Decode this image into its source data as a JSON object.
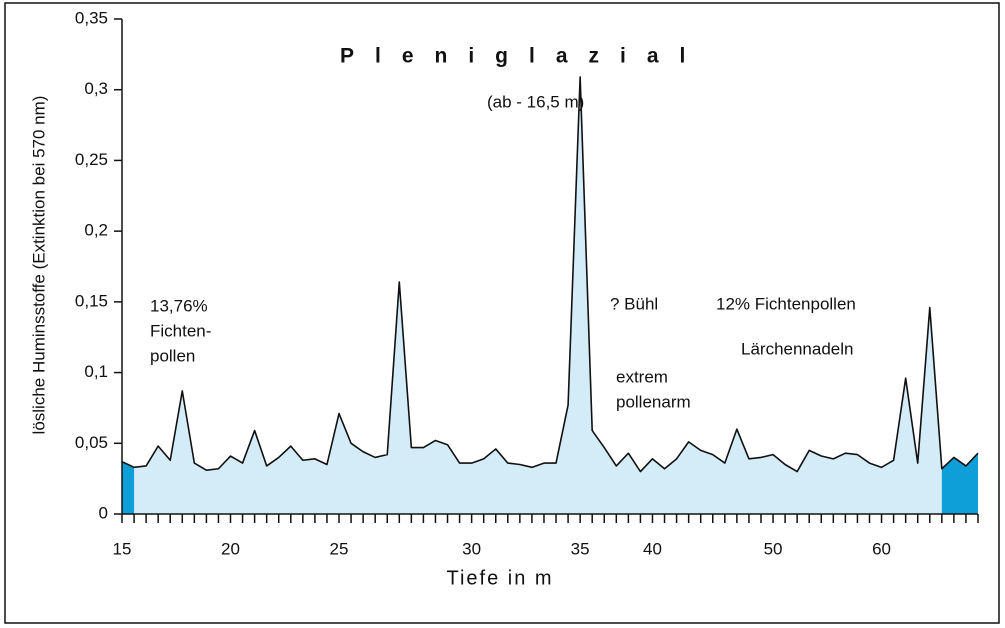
{
  "chart_data": {
    "type": "area",
    "title": "Pleniglazial",
    "x_label": "Tiefe in m",
    "y_label": "lösliche Huminsstoffe (Extinktion bei 570 nm)",
    "annotations": [
      "(ab  - 16,5 m)",
      "13,76%",
      "Fichten-",
      "pollen",
      "? Bühl",
      "extrem",
      "pollenarm",
      "12% Fichtenpollen",
      "Lärchennadeln"
    ],
    "categories": [
      "15",
      null,
      null,
      null,
      null,
      null,
      null,
      null,
      null,
      "20",
      null,
      null,
      null,
      null,
      null,
      null,
      null,
      null,
      "25",
      null,
      null,
      null,
      null,
      null,
      null,
      null,
      null,
      null,
      null,
      "30",
      null,
      null,
      null,
      null,
      null,
      null,
      null,
      null,
      "35",
      null,
      null,
      null,
      null,
      null,
      "40",
      null,
      null,
      null,
      null,
      null,
      null,
      null,
      null,
      null,
      "50",
      null,
      null,
      null,
      null,
      null,
      null,
      null,
      null,
      "60",
      null,
      null,
      null,
      null,
      null,
      null,
      null,
      null
    ],
    "values": [
      0.037,
      0.033,
      0.034,
      0.048,
      0.038,
      0.087,
      0.036,
      0.031,
      0.032,
      0.041,
      0.036,
      0.059,
      0.034,
      0.04,
      0.048,
      0.038,
      0.039,
      0.035,
      0.071,
      0.05,
      0.044,
      0.04,
      0.042,
      0.164,
      0.047,
      0.047,
      0.052,
      0.049,
      0.036,
      0.036,
      0.039,
      0.046,
      0.036,
      0.035,
      0.033,
      0.036,
      0.036,
      0.077,
      0.309,
      0.059,
      0.047,
      0.034,
      0.043,
      0.03,
      0.039,
      0.032,
      0.039,
      0.051,
      0.045,
      0.042,
      0.036,
      0.06,
      0.039,
      0.04,
      0.042,
      0.035,
      0.03,
      0.045,
      0.041,
      0.039,
      0.043,
      0.042,
      0.036,
      0.033,
      0.038,
      0.096,
      0.036,
      0.146,
      0.032,
      0.04,
      0.034,
      0.043
    ],
    "color": "#d4ecf8",
    "line_color": "#111111",
    "highlight_color": "#0f9fd8",
    "ylim": [
      0,
      0.35
    ],
    "yticks": [
      0,
      {
        "value": 0.05,
        "label": "0,05"
      },
      {
        "value": 0.1,
        "label": "0,1"
      },
      {
        "value": 0.15,
        "label": "0,15"
      },
      {
        "value": 0.2,
        "label": "0,2"
      },
      {
        "value": 0.25,
        "label": "0,25"
      },
      {
        "value": 0.3,
        "label": "0,3"
      },
      {
        "value": 0.35,
        "label": "0,35"
      }
    ]
  }
}
